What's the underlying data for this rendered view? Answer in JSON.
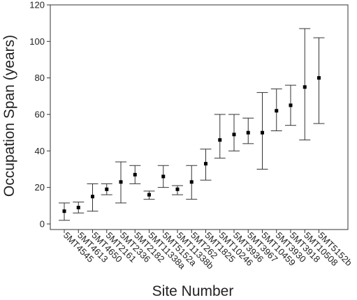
{
  "chart_data": {
    "type": "scatter",
    "xlabel": "Site Number",
    "ylabel": "Occupation Span (years)",
    "ylim": [
      0,
      120
    ],
    "yticks": [
      0,
      20,
      40,
      60,
      80,
      100,
      120
    ],
    "grid": false,
    "legend": "none",
    "error_bars": true,
    "marker_color": "#000000",
    "categories": [
      "5MT4545",
      "5MT4613",
      "5MT4650",
      "5MT2161",
      "5MT2336",
      "5MT2182",
      "5MT11338a",
      "5MT5152a",
      "5MT11338b",
      "5MT262",
      "5MT1825",
      "5MT10246",
      "5MT3936",
      "5MT3967",
      "5MT10459",
      "5MT3930",
      "5MT3918",
      "5MT10508",
      "5MT5152b"
    ],
    "values": [
      7,
      9,
      15,
      19,
      23,
      27,
      16,
      26,
      19,
      23,
      33,
      46,
      49,
      50,
      50,
      62,
      65,
      75,
      80
    ],
    "lower": [
      2,
      6,
      7,
      16,
      11.5,
      22,
      13.5,
      20,
      16,
      13.5,
      24,
      36,
      40,
      44,
      30,
      51,
      54,
      46,
      55
    ],
    "upper": [
      11.5,
      12,
      22,
      22,
      34,
      32,
      18,
      32,
      21,
      32,
      41,
      60,
      60,
      58,
      72,
      74,
      76,
      107,
      102
    ]
  }
}
